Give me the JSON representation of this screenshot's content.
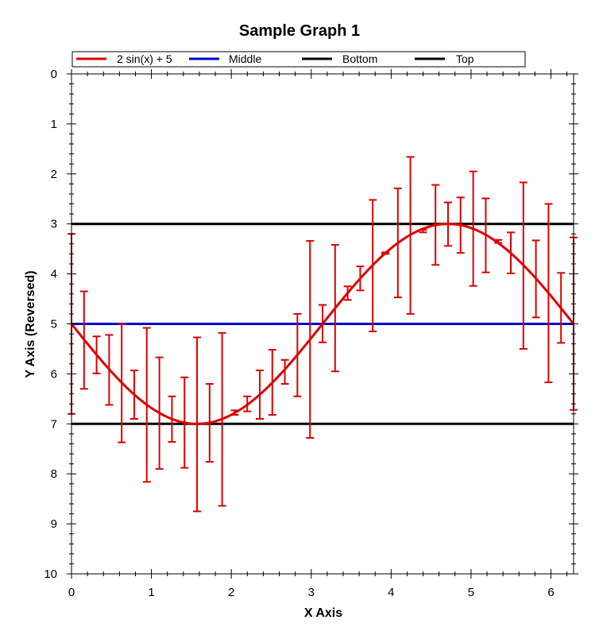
{
  "chart_data": {
    "type": "line",
    "title": "Sample Graph 1",
    "xlabel": "X Axis",
    "ylabel": "Y Axis (Reversed)",
    "xlim": [
      0,
      6.2832
    ],
    "ylim": [
      0,
      10
    ],
    "y_reversed": true,
    "grid": false,
    "legend_position": "top",
    "x_ticks": [
      "0",
      "1",
      "2",
      "3",
      "4",
      "5",
      "6"
    ],
    "y_ticks": [
      "0",
      "1",
      "2",
      "3",
      "4",
      "5",
      "6",
      "7",
      "8",
      "9",
      "10"
    ],
    "series": [
      {
        "name": "2 sin(x) + 5",
        "color": "#dd0000",
        "function": "2*sin(x)+5",
        "error_bars": {
          "x": [
            0,
            0.157,
            0.314,
            0.471,
            0.628,
            0.785,
            0.942,
            1.1,
            1.257,
            1.414,
            1.571,
            1.728,
            1.885,
            2.042,
            2.199,
            2.356,
            2.513,
            2.67,
            2.827,
            2.985,
            3.142,
            3.299,
            3.456,
            3.613,
            3.77,
            3.927,
            4.084,
            4.241,
            4.398,
            4.555,
            4.712,
            4.869,
            5.027,
            5.184,
            5.341,
            5.498,
            5.655,
            5.812,
            5.969,
            6.126,
            6.283
          ],
          "low": [
            3.2,
            4.35,
            5.25,
            5.22,
            5.0,
            5.93,
            5.08,
            5.67,
            6.45,
            6.07,
            5.27,
            6.2,
            5.18,
            6.73,
            6.45,
            5.93,
            5.52,
            5.72,
            4.8,
            3.34,
            4.62,
            3.42,
            4.25,
            3.85,
            2.52,
            3.57,
            2.29,
            1.66,
            3.12,
            2.22,
            2.57,
            2.47,
            1.95,
            2.49,
            3.32,
            3.17,
            2.17,
            3.33,
            2.6,
            3.98,
            3.27
          ],
          "high": [
            6.8,
            6.3,
            5.99,
            6.62,
            7.37,
            6.9,
            8.16,
            7.9,
            7.36,
            7.88,
            8.75,
            7.76,
            8.64,
            6.82,
            6.75,
            6.9,
            6.82,
            6.2,
            6.45,
            7.28,
            5.37,
            5.95,
            4.52,
            4.33,
            5.15,
            3.6,
            4.47,
            4.8,
            3.17,
            3.82,
            3.44,
            3.58,
            4.24,
            3.97,
            3.38,
            3.99,
            5.5,
            4.87,
            6.17,
            5.38,
            6.72
          ]
        }
      },
      {
        "name": "Middle",
        "color": "#0000cc",
        "y": 5
      },
      {
        "name": "Bottom",
        "color": "#000000",
        "y": 7
      },
      {
        "name": "Top",
        "color": "#000000",
        "y": 3
      }
    ]
  }
}
